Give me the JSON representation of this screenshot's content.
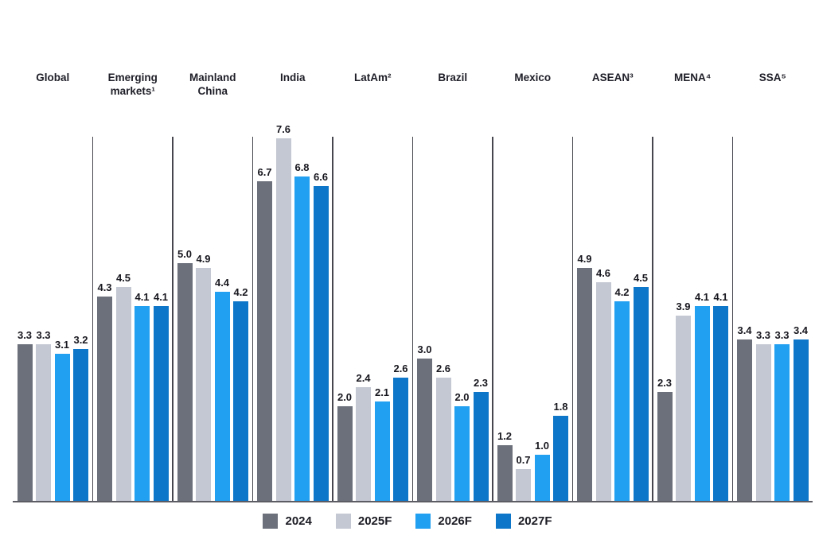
{
  "chart_data": {
    "type": "bar",
    "title": "",
    "categories": [
      "Global",
      "Emerging markets¹",
      "Mainland China",
      "India",
      "LatAm²",
      "Brazil",
      "Mexico",
      "ASEAN³",
      "MENA⁴",
      "SSA⁵"
    ],
    "series": [
      {
        "name": "2024",
        "color": "#6c707b",
        "values": [
          3.3,
          4.3,
          5.0,
          6.7,
          2.0,
          3.0,
          1.2,
          4.9,
          2.3,
          3.4
        ]
      },
      {
        "name": "2025F",
        "color": "#c4c8d2",
        "values": [
          3.3,
          4.5,
          4.9,
          7.6,
          2.4,
          2.6,
          0.7,
          4.6,
          3.9,
          3.3
        ]
      },
      {
        "name": "2026F",
        "color": "#219ff0",
        "values": [
          3.1,
          4.1,
          4.4,
          6.8,
          2.1,
          2.0,
          1.0,
          4.2,
          4.1,
          3.3
        ]
      },
      {
        "name": "2027F",
        "color": "#0e76c8",
        "values": [
          3.2,
          4.1,
          4.2,
          6.6,
          2.6,
          2.3,
          1.8,
          4.5,
          4.1,
          3.4
        ]
      }
    ],
    "value_label_format": "one_decimal",
    "ylim": [
      0,
      8
    ],
    "grid": false,
    "y_axis_visible": false,
    "legend_position": "bottom-center",
    "group_separators": true
  },
  "styles": {
    "background": "#ffffff",
    "text_color": "#1b1b24",
    "baseline_color": "#5c5c64",
    "separator_color": "#46464f"
  }
}
